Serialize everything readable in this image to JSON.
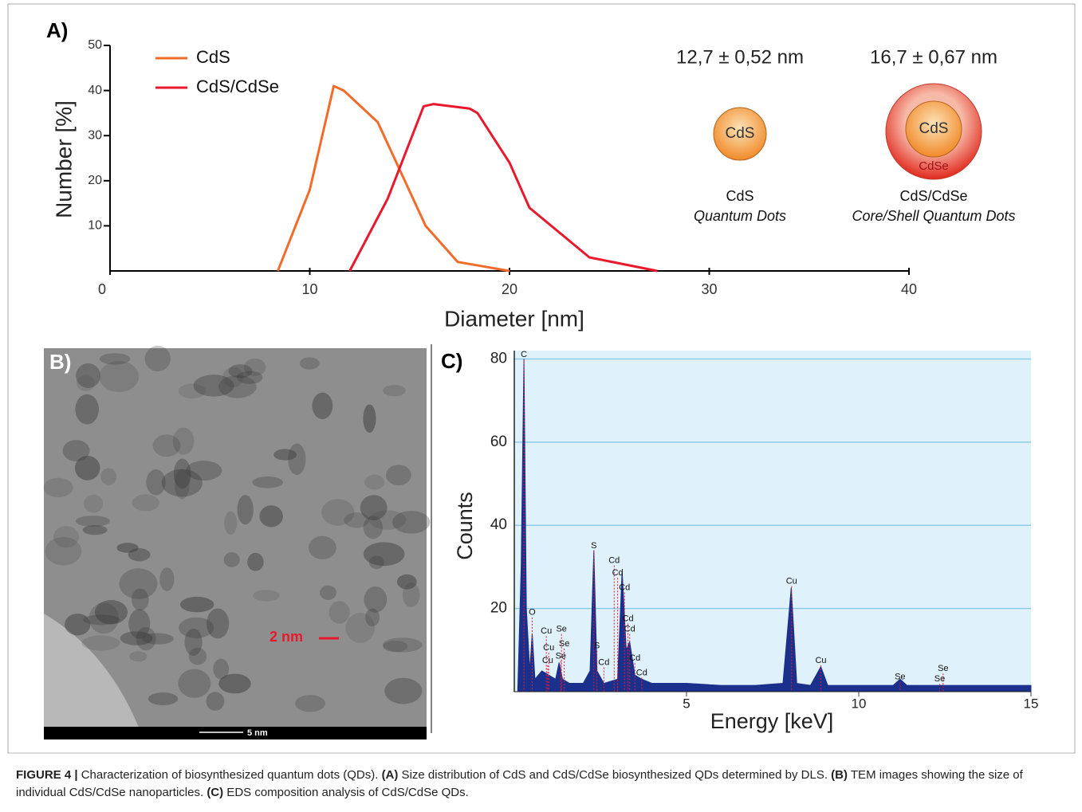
{
  "chart_data": [
    {
      "type": "line",
      "panel_label": "A)",
      "xlabel": "Diameter [nm]",
      "ylabel": "Number [%]",
      "xlim": [
        0,
        40
      ],
      "xticks": [
        0,
        10,
        20,
        30,
        40
      ],
      "ylim": [
        0,
        50
      ],
      "yticks": [
        10,
        20,
        30,
        40,
        50
      ],
      "legend": "upper left",
      "series": [
        {
          "name": "CdS",
          "color": "#f26b2a",
          "x": [
            8.4,
            10,
            11.2,
            11.7,
            13.4,
            15.8,
            17.4,
            20
          ],
          "values": [
            0,
            18,
            41,
            40,
            33,
            10,
            2,
            0
          ]
        },
        {
          "name": "CdS/CdSe",
          "color": "#e8192c",
          "x": [
            12,
            13.9,
            15.7,
            16.2,
            18,
            18.4,
            20,
            21,
            24,
            27.4
          ],
          "values": [
            0,
            16,
            36.5,
            37,
            36,
            35,
            24,
            14,
            3,
            0
          ]
        }
      ],
      "size_labels": [
        "12,7 ± 0,52 nm",
        "16,7 ± 0,67 nm"
      ],
      "particles": [
        {
          "core": "CdS",
          "name": "CdS",
          "subtitle": "Quantum Dots"
        },
        {
          "core": "CdS",
          "shell": "CdSe",
          "name": "CdS/CdSe",
          "subtitle": "Core/Shell Quantum Dots"
        }
      ]
    },
    {
      "type": "area",
      "panel_label": "C)",
      "xlabel": "Energy [keV]",
      "ylabel": "Counts",
      "xlim": [
        0,
        15
      ],
      "xticks": [
        5,
        10,
        15
      ],
      "ylim": [
        0,
        82
      ],
      "yticks": [
        20,
        40,
        60,
        80
      ],
      "grid": true,
      "background": "#dff1fa",
      "color": "#1b2f8c",
      "x": [
        0.1,
        0.2,
        0.28,
        0.35,
        0.45,
        0.52,
        0.6,
        0.8,
        1.0,
        1.2,
        1.3,
        1.4,
        1.6,
        2.0,
        2.2,
        2.31,
        2.4,
        2.6,
        3.0,
        3.13,
        3.25,
        3.35,
        3.5,
        3.7,
        4.0,
        5,
        6,
        7,
        7.8,
        8.04,
        8.2,
        8.6,
        8.9,
        9.1,
        10,
        11,
        11.2,
        11.4,
        12,
        13,
        14,
        15
      ],
      "values": [
        0,
        30,
        80,
        20,
        5,
        14,
        3,
        5,
        4,
        3,
        7,
        3,
        2,
        2,
        5,
        34,
        5,
        2,
        3,
        29,
        10,
        12,
        4,
        3,
        2,
        2,
        1.5,
        1.5,
        2,
        25,
        2,
        1.5,
        6,
        1.5,
        1.5,
        1.5,
        3,
        1.5,
        1.5,
        1.5,
        1.5,
        1.5
      ],
      "peaks": [
        {
          "label": "C",
          "x": 0.28,
          "y": 81
        },
        {
          "label": "O",
          "x": 0.52,
          "y": 19
        },
        {
          "label": "Cu",
          "x": 0.93,
          "y": 14.5
        },
        {
          "label": "Cu",
          "x": 1.0,
          "y": 10.5
        },
        {
          "label": "Cu",
          "x": 0.97,
          "y": 7.5
        },
        {
          "label": "Se",
          "x": 1.37,
          "y": 15
        },
        {
          "label": "Se",
          "x": 1.45,
          "y": 11.5
        },
        {
          "label": "Se",
          "x": 1.35,
          "y": 8.5
        },
        {
          "label": "S",
          "x": 2.31,
          "y": 35
        },
        {
          "label": "S",
          "x": 2.4,
          "y": 11
        },
        {
          "label": "Cd",
          "x": 2.6,
          "y": 7
        },
        {
          "label": "Cd",
          "x": 2.9,
          "y": 31.5
        },
        {
          "label": "Cd",
          "x": 3.0,
          "y": 28.5
        },
        {
          "label": "Cd",
          "x": 3.2,
          "y": 25
        },
        {
          "label": "Cd",
          "x": 3.3,
          "y": 17.5
        },
        {
          "label": "Cd",
          "x": 3.35,
          "y": 15
        },
        {
          "label": "Cd",
          "x": 3.5,
          "y": 8
        },
        {
          "label": "Cd",
          "x": 3.7,
          "y": 4.5
        },
        {
          "label": "Cu",
          "x": 8.05,
          "y": 26.5
        },
        {
          "label": "Cu",
          "x": 8.9,
          "y": 7.5
        },
        {
          "label": "Se",
          "x": 11.2,
          "y": 3.5
        },
        {
          "label": "Se",
          "x": 12.45,
          "y": 5.5
        },
        {
          "label": "Se",
          "x": 12.35,
          "y": 3
        }
      ]
    }
  ],
  "panel_b": {
    "label": "B)",
    "annotation": "2 nm",
    "scale_bar": "5 nm"
  },
  "caption": [
    {
      "text": "FIGURE 4 |",
      "bold": true
    },
    {
      "text": " Characterization of biosynthesized quantum dots (QDs). ",
      "bold": false
    },
    {
      "text": "(A)",
      "bold": true
    },
    {
      "text": " Size distribution of CdS and CdS/CdSe biosynthesized QDs determined by DLS. ",
      "bold": false
    },
    {
      "text": "(B)",
      "bold": true
    },
    {
      "text": " TEM images showing the size of individual CdS/CdSe nanoparticles. ",
      "bold": false
    },
    {
      "text": "(C)",
      "bold": true
    },
    {
      "text": " EDS composition analysis of CdS/CdSe QDs.",
      "bold": false
    }
  ]
}
